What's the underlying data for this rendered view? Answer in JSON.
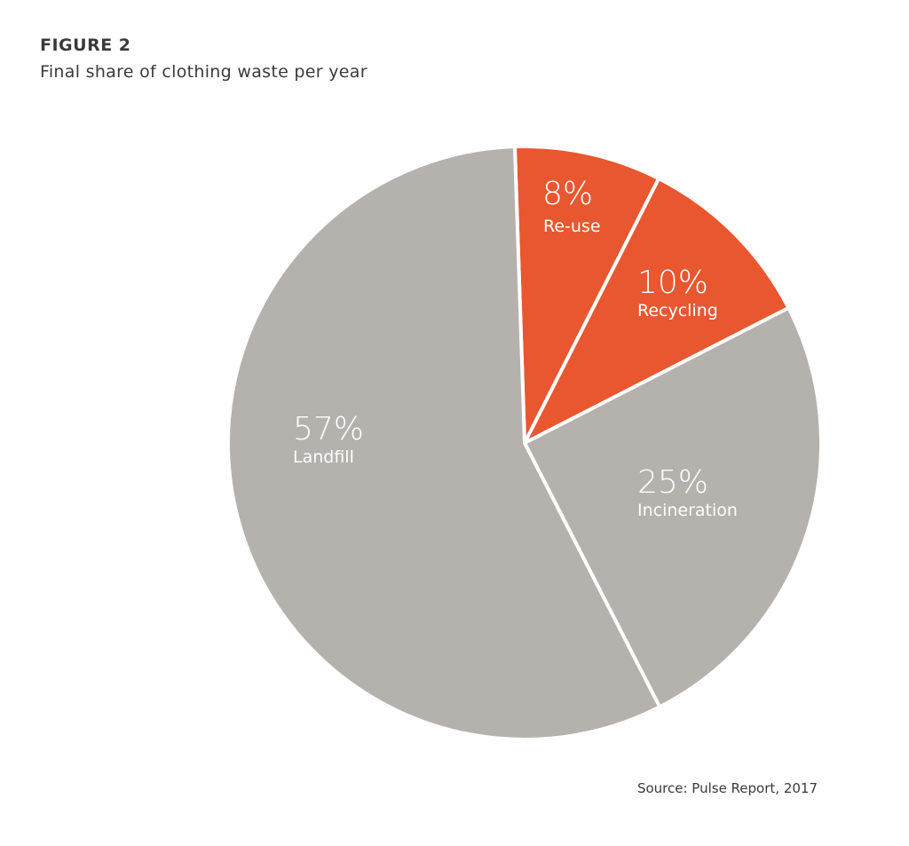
{
  "header": {
    "figure_label": "FIGURE 2",
    "subtitle": "Final share of clothing waste per year"
  },
  "footer": {
    "source": "Source: Pulse Report, 2017"
  },
  "chart_data": {
    "type": "pie",
    "title": "Final share of clothing waste per year",
    "start": "top, clockwise",
    "slices": [
      {
        "label": "Re-use",
        "value": 8,
        "display": "8%",
        "color": "#e8572f"
      },
      {
        "label": "Recycling",
        "value": 10,
        "display": "10%",
        "color": "#e8572f"
      },
      {
        "label": "Incineration",
        "value": 25,
        "display": "25%",
        "color": "#b5b1ad"
      },
      {
        "label": "Landfill",
        "value": 57,
        "display": "57%",
        "color": "#b5b1ad"
      }
    ]
  }
}
